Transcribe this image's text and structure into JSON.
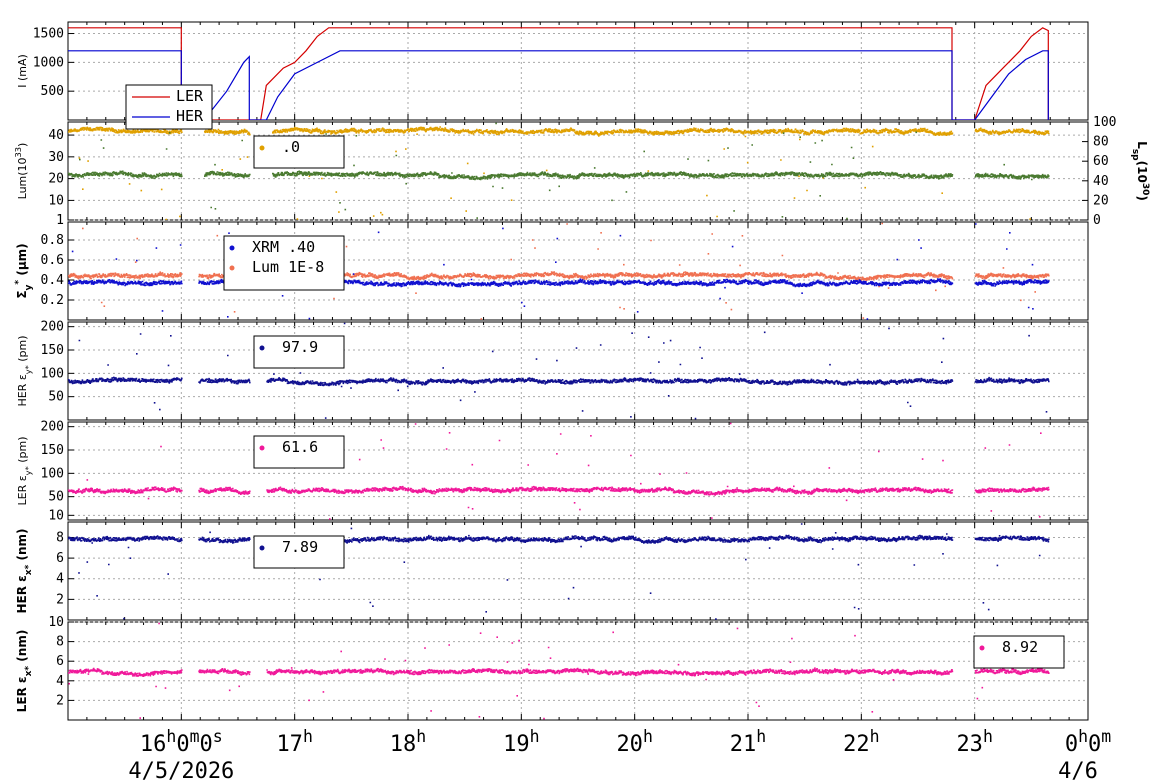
{
  "chart_data": [
    {
      "type": "line",
      "panel": "current",
      "ylabel": "I (mA)",
      "yticks": [
        500,
        1000,
        1500
      ],
      "ylim": [
        0,
        1700
      ],
      "series": [
        {
          "name": "LER",
          "color": "#d40000",
          "points": [
            [
              15.0,
              1600
            ],
            [
              16.0,
              1600
            ],
            [
              16.0,
              0
            ],
            [
              16.7,
              0
            ],
            [
              16.75,
              600
            ],
            [
              16.9,
              900
            ],
            [
              17.0,
              1000
            ],
            [
              17.1,
              1200
            ],
            [
              17.2,
              1450
            ],
            [
              17.3,
              1600
            ],
            [
              22.8,
              1600
            ],
            [
              22.8,
              0
            ],
            [
              23.0,
              0
            ],
            [
              23.1,
              600
            ],
            [
              23.25,
              900
            ],
            [
              23.4,
              1200
            ],
            [
              23.5,
              1450
            ],
            [
              23.6,
              1600
            ],
            [
              23.65,
              1550
            ],
            [
              23.65,
              0
            ]
          ]
        },
        {
          "name": "HER",
          "color": "#0000d0",
          "points": [
            [
              15.0,
              1200
            ],
            [
              16.0,
              1200
            ],
            [
              16.0,
              0
            ],
            [
              16.2,
              0
            ],
            [
              16.4,
              500
            ],
            [
              16.55,
              1000
            ],
            [
              16.6,
              1100
            ],
            [
              16.6,
              0
            ],
            [
              16.75,
              0
            ],
            [
              16.85,
              400
            ],
            [
              17.0,
              800
            ],
            [
              17.2,
              1000
            ],
            [
              17.4,
              1200
            ],
            [
              22.8,
              1200
            ],
            [
              22.8,
              0
            ],
            [
              23.0,
              0
            ],
            [
              23.15,
              400
            ],
            [
              23.3,
              800
            ],
            [
              23.45,
              1050
            ],
            [
              23.6,
              1200
            ],
            [
              23.65,
              1200
            ],
            [
              23.65,
              0
            ]
          ]
        }
      ]
    },
    {
      "type": "scatter",
      "panel": "luminosity",
      "ylabel": "Lum(10",
      "ylabel_sup": "33",
      "ylabel_end": ")",
      "yticks": [
        1,
        10,
        20,
        30,
        40
      ],
      "ylim": [
        1,
        46
      ],
      "y2label": "L",
      "y2label_sub": "sp",
      "y2label_mid": "(10",
      "y2label_sup": "30",
      "y2label_end": ")",
      "y2ticks": [
        0,
        20,
        40,
        60,
        80,
        100
      ],
      "y2lim": [
        0,
        100
      ],
      "legend_value": ".0",
      "series": [
        {
          "color": "#e0a000",
          "level": 42,
          "ranges": [
            [
              15.0,
              16.0
            ],
            [
              16.2,
              16.6
            ],
            [
              16.8,
              22.8
            ],
            [
              23.0,
              23.65
            ]
          ]
        },
        {
          "color": "#4a7a30",
          "level": 22,
          "ranges": [
            [
              15.0,
              16.0
            ],
            [
              16.2,
              16.6
            ],
            [
              16.8,
              22.8
            ],
            [
              23.0,
              23.65
            ]
          ]
        }
      ]
    },
    {
      "type": "scatter",
      "panel": "sigma",
      "ylabel": "Σ",
      "ylabel_sub": "y",
      "ylabel_sup": "*",
      "ylabel_end": " (μm)",
      "yticks": [
        0.2,
        0.4,
        0.6,
        0.8
      ],
      "ylim": [
        0.0,
        0.98
      ],
      "legend": [
        {
          "name": "XRM",
          "value": ".40",
          "color": "#1010d0"
        },
        {
          "name": "Lum",
          "value": "1E-8",
          "color": "#f07050"
        }
      ],
      "series": [
        {
          "color": "#f07050",
          "level": 0.45
        },
        {
          "color": "#1010d0",
          "level": 0.38
        }
      ]
    },
    {
      "type": "scatter",
      "panel": "her_emit_y",
      "ylabel": "HER ε",
      "ylabel_sub": "y*",
      "ylabel_end": " (pm)",
      "yticks": [
        50,
        100,
        150,
        200
      ],
      "ylim": [
        0,
        210
      ],
      "legend_value": "97.9",
      "series": [
        {
          "color": "#101090",
          "level": 85
        }
      ]
    },
    {
      "type": "scatter",
      "panel": "ler_emit_y",
      "ylabel": "LER ε",
      "ylabel_sub": "y*",
      "ylabel_end": " (pm)",
      "yticks": [
        10,
        50,
        100,
        150,
        200
      ],
      "ylim": [
        0,
        210
      ],
      "legend_value": "61.6",
      "series": [
        {
          "color": "#f0189a",
          "level": 65
        }
      ]
    },
    {
      "type": "scatter",
      "panel": "her_emit_x",
      "ylabel": "HER ε",
      "ylabel_sub": "x*",
      "ylabel_end": " (nm)",
      "yticks": [
        2,
        4,
        6,
        8
      ],
      "ylim": [
        0,
        9.5
      ],
      "legend_value": "7.89",
      "series": [
        {
          "color": "#101090",
          "level": 7.9
        }
      ]
    },
    {
      "type": "scatter",
      "panel": "ler_emit_x",
      "ylabel": "LER ε",
      "ylabel_sub": "x*",
      "ylabel_end": " (nm)",
      "yticks": [
        2,
        4,
        6,
        8,
        10
      ],
      "ylim": [
        0,
        10
      ],
      "legend_value": "8.92",
      "series": [
        {
          "color": "#f0189a",
          "level": 5.0
        }
      ]
    }
  ],
  "x_axis": {
    "range": [
      15.0,
      24.0
    ],
    "ticks": [
      {
        "h": 16,
        "label": "16",
        "sup": "h",
        "extra": "0",
        "extra_sup": "m",
        "extra2": "0",
        "extra2_sup": "s"
      },
      {
        "h": 17,
        "label": "17",
        "sup": "h"
      },
      {
        "h": 18,
        "label": "18",
        "sup": "h"
      },
      {
        "h": 19,
        "label": "19",
        "sup": "h"
      },
      {
        "h": 20,
        "label": "20",
        "sup": "h"
      },
      {
        "h": 21,
        "label": "21",
        "sup": "h"
      },
      {
        "h": 22,
        "label": "22",
        "sup": "h"
      },
      {
        "h": 23,
        "label": "23",
        "sup": "h"
      },
      {
        "h": 24,
        "label": "0",
        "sup": "h",
        "extra": "0",
        "extra_sup": "m"
      }
    ],
    "date_left": "4/5/2026",
    "date_right": "4/6"
  }
}
